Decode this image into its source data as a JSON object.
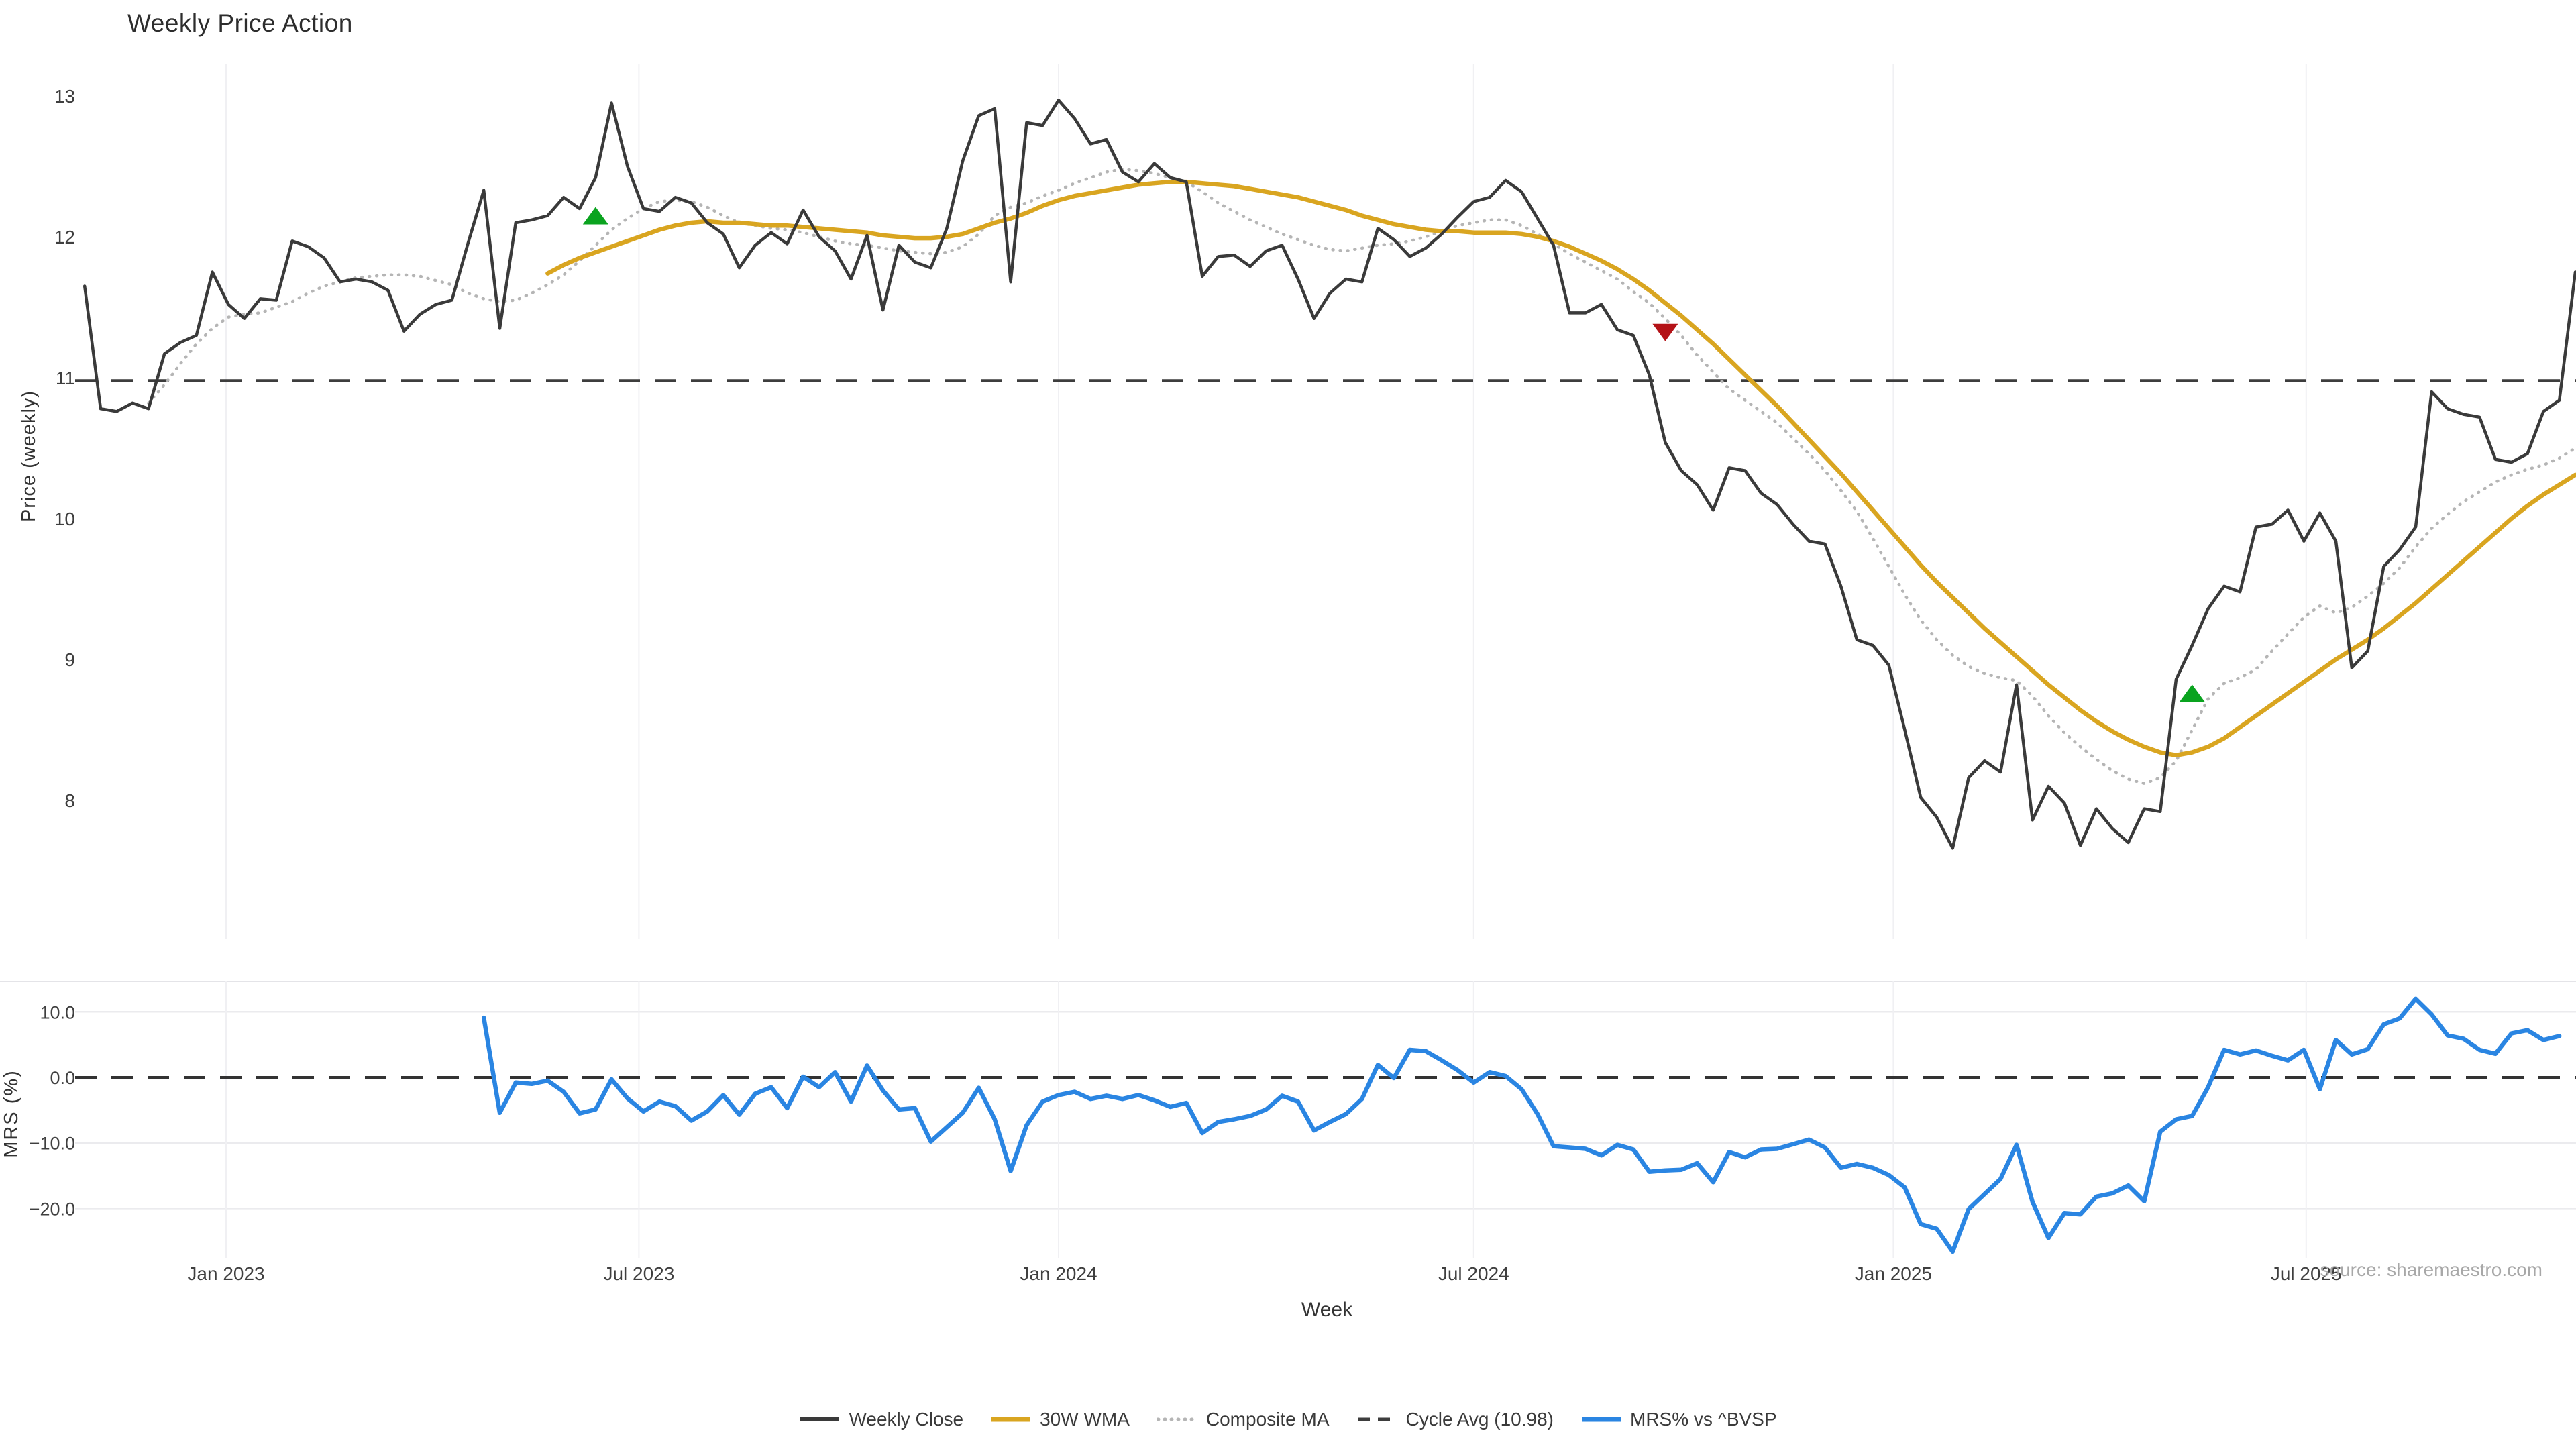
{
  "title": "Weekly Price Action",
  "source_note": "source: sharemaestro.com",
  "colors": {
    "close": "#3a3a3a",
    "wma": "#d9a520",
    "composite": "#b5b5b5",
    "cycle_dash": "#3d3d3d",
    "mrs": "#2a85e2",
    "buy_marker": "#0aa31f",
    "sell_marker": "#b41217",
    "grid": "#f0f0f3",
    "mrs_grid": "#ebebee",
    "tick_text": "#3f3f3f",
    "source_text": "#a8a8a8"
  },
  "x_axis": {
    "label": "Week",
    "start_date": "2022-10-31",
    "interval_days": 7,
    "ticks": [
      {
        "label": "Jan 2023",
        "date": "2023-01-01"
      },
      {
        "label": "Jul 2023",
        "date": "2023-07-01"
      },
      {
        "label": "Jan 2024",
        "date": "2024-01-01"
      },
      {
        "label": "Jul 2024",
        "date": "2024-07-01"
      },
      {
        "label": "Jan 2025",
        "date": "2025-01-01"
      },
      {
        "label": "Jul 2025",
        "date": "2025-07-01"
      }
    ]
  },
  "price_panel": {
    "ylabel": "Price (weekly)",
    "yticks": [
      {
        "label": "13",
        "value": 13
      },
      {
        "label": "12",
        "value": 12
      },
      {
        "label": "11",
        "value": 11
      },
      {
        "label": "10",
        "value": 10
      },
      {
        "label": "9",
        "value": 9
      },
      {
        "label": "8",
        "value": 8
      }
    ],
    "cycle_avg": 10.98
  },
  "mrs_panel": {
    "ylabel": "MRS (%)",
    "yticks": [
      {
        "label": "10.0",
        "value": 10
      },
      {
        "label": "0.0",
        "value": 0
      },
      {
        "label": "−10.0",
        "value": -10
      },
      {
        "label": "−20.0",
        "value": -20
      }
    ],
    "zero_line": 0
  },
  "legend": {
    "items": [
      {
        "label": "Weekly Close",
        "style": "solid",
        "color": "#3a3a3a",
        "width": 6
      },
      {
        "label": "30W WMA",
        "style": "solid",
        "color": "#d9a520",
        "width": 7
      },
      {
        "label": "Composite MA",
        "style": "dotted",
        "color": "#b5b5b5",
        "width": 5
      },
      {
        "label": "Cycle Avg (10.98)",
        "style": "dashed",
        "color": "#3d3d3d",
        "width": 5
      },
      {
        "label": "MRS% vs ^BVSP",
        "style": "solid",
        "color": "#2a85e2",
        "width": 7
      }
    ]
  },
  "chart_data": [
    {
      "type": "line",
      "panel": "price",
      "title": "Weekly Price Action",
      "xlabel": "Week",
      "ylabel": "Price (weekly)",
      "ylim": [
        7.0,
        13.25
      ],
      "x_start_date": "2022-10-31",
      "x_interval_days": 7,
      "grid": "vertical-months",
      "series": [
        {
          "name": "Weekly Close",
          "color": "#3a3a3a",
          "style": "solid",
          "width": 4.5,
          "start_week": 0,
          "values": [
            11.65,
            10.78,
            10.76,
            10.82,
            10.78,
            11.17,
            11.25,
            11.3,
            11.75,
            11.52,
            11.42,
            11.56,
            11.55,
            11.97,
            11.93,
            11.85,
            11.68,
            11.7,
            11.68,
            11.62,
            11.33,
            11.45,
            11.52,
            11.55,
            11.95,
            12.33,
            11.35,
            12.1,
            12.12,
            12.15,
            12.28,
            12.2,
            12.42,
            12.95,
            12.5,
            12.2,
            12.18,
            12.28,
            12.24,
            12.1,
            12.02,
            11.78,
            11.94,
            12.03,
            11.95,
            12.19,
            12.0,
            11.9,
            11.7,
            12.01,
            11.48,
            11.94,
            11.82,
            11.78,
            12.06,
            12.54,
            12.86,
            12.91,
            11.68,
            12.81,
            12.79,
            12.97,
            12.84,
            12.66,
            12.69,
            12.46,
            12.39,
            12.52,
            12.42,
            12.39,
            11.72,
            11.86,
            11.87,
            11.79,
            11.9,
            11.94,
            11.7,
            11.42,
            11.6,
            11.7,
            11.68,
            12.06,
            11.98,
            11.86,
            11.92,
            12.02,
            12.14,
            12.25,
            12.28,
            12.4,
            12.32,
            12.13,
            11.94,
            11.46,
            11.46,
            11.52,
            11.34,
            11.3,
            11.02,
            10.54,
            10.34,
            10.24,
            10.06,
            10.36,
            10.34,
            10.18,
            10.1,
            9.96,
            9.84,
            9.82,
            9.52,
            9.14,
            9.1,
            8.96,
            8.5,
            8.02,
            7.88,
            7.66,
            8.16,
            8.28,
            8.2,
            8.82,
            7.86,
            8.1,
            7.98,
            7.68,
            7.94,
            7.8,
            7.7,
            7.94,
            7.92,
            8.86,
            9.1,
            9.36,
            9.52,
            9.48,
            9.94,
            9.96,
            10.06,
            9.84,
            10.04,
            9.84,
            8.94,
            9.06,
            9.66,
            9.78,
            9.94,
            10.9,
            10.78,
            10.74,
            10.72,
            10.42,
            10.4,
            10.46,
            10.76,
            10.84,
            11.75
          ]
        },
        {
          "name": "30W WMA",
          "color": "#d9a520",
          "style": "solid",
          "width": 6.5,
          "start_week": 29,
          "values": [
            11.74,
            11.8,
            11.85,
            11.89,
            11.93,
            11.97,
            12.01,
            12.05,
            12.08,
            12.1,
            12.11,
            12.1,
            12.1,
            12.09,
            12.08,
            12.08,
            12.07,
            12.06,
            12.05,
            12.04,
            12.03,
            12.01,
            12.0,
            11.99,
            11.99,
            12.0,
            12.02,
            12.06,
            12.1,
            12.13,
            12.17,
            12.22,
            12.26,
            12.29,
            12.31,
            12.33,
            12.35,
            12.37,
            12.38,
            12.39,
            12.39,
            12.38,
            12.37,
            12.36,
            12.34,
            12.32,
            12.3,
            12.28,
            12.25,
            12.22,
            12.19,
            12.15,
            12.12,
            12.09,
            12.07,
            12.05,
            12.04,
            12.04,
            12.03,
            12.03,
            12.03,
            12.02,
            12.0,
            11.97,
            11.93,
            11.88,
            11.83,
            11.77,
            11.7,
            11.62,
            11.53,
            11.44,
            11.34,
            11.24,
            11.13,
            11.02,
            10.91,
            10.8,
            10.68,
            10.56,
            10.44,
            10.32,
            10.19,
            10.06,
            9.93,
            9.8,
            9.67,
            9.55,
            9.44,
            9.33,
            9.22,
            9.12,
            9.02,
            8.92,
            8.82,
            8.73,
            8.64,
            8.56,
            8.49,
            8.43,
            8.38,
            8.34,
            8.32,
            8.34,
            8.38,
            8.44,
            8.52,
            8.6,
            8.68,
            8.76,
            8.84,
            8.92,
            9.0,
            9.07,
            9.14,
            9.22,
            9.31,
            9.4,
            9.5,
            9.6,
            9.7,
            9.8,
            9.9,
            10.0,
            10.09,
            10.17,
            10.24,
            10.31
          ]
        },
        {
          "name": "Composite MA",
          "color": "#b5b5b5",
          "style": "dotted",
          "width": 4.5,
          "start_week": 4,
          "values": [
            10.82,
            10.95,
            11.1,
            11.24,
            11.35,
            11.43,
            11.45,
            11.46,
            11.5,
            11.54,
            11.6,
            11.65,
            11.68,
            11.71,
            11.72,
            11.73,
            11.73,
            11.72,
            11.69,
            11.66,
            11.6,
            11.56,
            11.54,
            11.55,
            11.6,
            11.66,
            11.73,
            11.83,
            11.94,
            12.05,
            12.13,
            12.2,
            12.25,
            12.26,
            12.25,
            12.21,
            12.15,
            12.1,
            12.08,
            12.06,
            12.05,
            12.03,
            12.0,
            11.97,
            11.95,
            11.94,
            11.92,
            11.9,
            11.89,
            11.88,
            11.89,
            11.93,
            12.02,
            12.15,
            12.21,
            12.24,
            12.29,
            12.33,
            12.38,
            12.42,
            12.46,
            12.48,
            12.47,
            12.45,
            12.42,
            12.39,
            12.32,
            12.24,
            12.18,
            12.12,
            12.07,
            12.02,
            11.98,
            11.94,
            11.91,
            11.9,
            11.92,
            11.94,
            11.95,
            11.97,
            12.0,
            12.04,
            12.08,
            12.1,
            12.12,
            12.12,
            12.08,
            12.02,
            11.95,
            11.88,
            11.82,
            11.76,
            11.7,
            11.61,
            11.53,
            11.42,
            11.3,
            11.16,
            11.04,
            10.92,
            10.84,
            10.76,
            10.68,
            10.57,
            10.46,
            10.34,
            10.2,
            10.05,
            9.86,
            9.66,
            9.46,
            9.28,
            9.14,
            9.03,
            8.95,
            8.9,
            8.87,
            8.85,
            8.74,
            8.6,
            8.48,
            8.38,
            8.29,
            8.21,
            8.15,
            8.12,
            8.16,
            8.28,
            8.5,
            8.72,
            8.83,
            8.87,
            8.93,
            9.06,
            9.18,
            9.3,
            9.38,
            9.33,
            9.37,
            9.45,
            9.54,
            9.65,
            9.8,
            9.93,
            10.03,
            10.12,
            10.19,
            10.26,
            10.31,
            10.35,
            10.38,
            10.43,
            10.5
          ]
        },
        {
          "name": "Cycle Avg (10.98)",
          "color": "#3d3d3d",
          "style": "dashed",
          "width": 4,
          "constant": 10.98
        }
      ],
      "markers": [
        {
          "type": "buy",
          "shape": "triangle-up",
          "color": "#0aa31f",
          "week": 32,
          "price": 12.15
        },
        {
          "type": "sell",
          "shape": "triangle-down",
          "color": "#b41217",
          "week": 99,
          "price": 11.32
        },
        {
          "type": "buy",
          "shape": "triangle-up",
          "color": "#0aa31f",
          "week": 132,
          "price": 8.76
        }
      ]
    },
    {
      "type": "line",
      "panel": "mrs",
      "xlabel": "Week",
      "ylabel": "MRS (%)",
      "ylim": [
        -27.5,
        14.6
      ],
      "x_start_date": "2022-10-31",
      "x_interval_days": 7,
      "series": [
        {
          "name": "MRS% vs ^BVSP",
          "color": "#2a85e2",
          "style": "solid",
          "width": 6.5,
          "start_week": 25,
          "values": [
            9.1,
            -5.4,
            -0.8,
            -1.0,
            -0.5,
            -2.2,
            -5.5,
            -4.9,
            -0.3,
            -3.2,
            -5.2,
            -3.7,
            -4.4,
            -6.6,
            -5.2,
            -2.7,
            -5.7,
            -2.5,
            -1.5,
            -4.7,
            0.1,
            -1.5,
            0.8,
            -3.7,
            1.8,
            -2.0,
            -4.9,
            -4.7,
            -9.8,
            -7.6,
            -5.4,
            -1.6,
            -6.4,
            -14.3,
            -7.3,
            -3.7,
            -2.7,
            -2.2,
            -3.3,
            -2.8,
            -3.3,
            -2.7,
            -3.5,
            -4.5,
            -3.9,
            -8.5,
            -6.8,
            -6.4,
            -5.9,
            -4.9,
            -2.8,
            -3.7,
            -8.1,
            -6.8,
            -5.6,
            -3.3,
            1.9,
            -0.1,
            4.2,
            4.0,
            2.6,
            1.1,
            -0.8,
            0.8,
            0.2,
            -1.8,
            -5.6,
            -10.5,
            -10.7,
            -10.9,
            -11.9,
            -10.3,
            -11.0,
            -14.4,
            -14.2,
            -14.1,
            -13.1,
            -16.0,
            -11.4,
            -12.2,
            -11.0,
            -10.9,
            -10.2,
            -9.5,
            -10.7,
            -13.8,
            -13.2,
            -13.8,
            -14.9,
            -16.8,
            -22.4,
            -23.1,
            -26.6,
            -20.1,
            -17.8,
            -15.5,
            -10.3,
            -19.0,
            -24.5,
            -20.7,
            -20.9,
            -18.2,
            -17.7,
            -16.5,
            -18.9,
            -8.3,
            -6.4,
            -5.9,
            -1.5,
            4.2,
            3.5,
            4.1,
            3.3,
            2.6,
            4.2,
            -1.8,
            5.7,
            3.5,
            4.3,
            8.1,
            9.0,
            12.0,
            9.6,
            6.4,
            5.9,
            4.2,
            3.6,
            6.7,
            7.2,
            5.7,
            6.3
          ]
        },
        {
          "name": "zero-line",
          "color": "#333333",
          "style": "dashed",
          "width": 4,
          "constant": 0
        }
      ]
    }
  ]
}
